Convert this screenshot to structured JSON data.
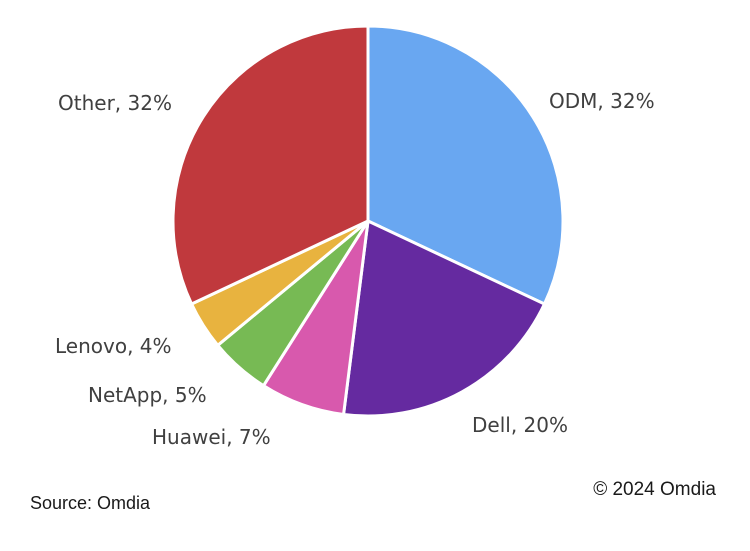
{
  "chart_data": {
    "type": "pie",
    "title": "",
    "slices": [
      {
        "name": "ODM",
        "value": 32,
        "label": "ODM, 32%",
        "color": "#69a7f1"
      },
      {
        "name": "Dell",
        "value": 20,
        "label": "Dell, 20%",
        "color": "#652aa0"
      },
      {
        "name": "Huawei",
        "value": 7,
        "label": "Huawei, 7%",
        "color": "#d859ad"
      },
      {
        "name": "NetApp",
        "value": 5,
        "label": "NetApp, 5%",
        "color": "#77ba54"
      },
      {
        "name": "Lenovo",
        "value": 4,
        "label": "Lenovo, 4%",
        "color": "#e8b33f"
      },
      {
        "name": "Other",
        "value": 32,
        "label": "Other, 32%",
        "color": "#c0393d"
      }
    ],
    "start_angle": "12 o'clock",
    "direction": "clockwise",
    "legend": "none"
  },
  "footer": {
    "source": "Source: Omdia",
    "copyright": "© 2024 Omdia"
  }
}
